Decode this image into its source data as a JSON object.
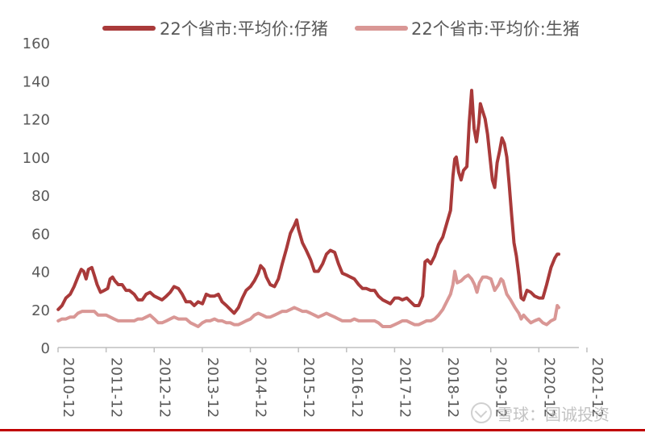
{
  "chart_data": {
    "type": "line",
    "title": "",
    "xlabel": "",
    "ylabel": "",
    "ylim": [
      0,
      160
    ],
    "yticks": [
      0,
      20,
      40,
      60,
      80,
      100,
      120,
      140,
      160
    ],
    "xlim": [
      2010.917,
      2021.75
    ],
    "x_tick_labels": [
      "2010-12",
      "2011-12",
      "2012-12",
      "2013-12",
      "2014-12",
      "2015-12",
      "2016-12",
      "2017-12",
      "2018-12",
      "2019-12",
      "2020-12",
      "2021-12"
    ],
    "x_tick_years": [
      2010.917,
      2011.917,
      2012.917,
      2013.917,
      2014.917,
      2015.917,
      2016.917,
      2017.917,
      2018.917,
      2019.917,
      2020.917,
      2021.917
    ],
    "grid": false,
    "legend_position": "top",
    "series": [
      {
        "name": "22个省市:平均价:仔猪",
        "color": "#a93a3a",
        "points": [
          [
            2010.92,
            20
          ],
          [
            2011.0,
            22
          ],
          [
            2011.08,
            26
          ],
          [
            2011.17,
            28
          ],
          [
            2011.25,
            32
          ],
          [
            2011.33,
            37
          ],
          [
            2011.4,
            41
          ],
          [
            2011.45,
            40
          ],
          [
            2011.5,
            36
          ],
          [
            2011.55,
            41
          ],
          [
            2011.62,
            42
          ],
          [
            2011.67,
            38
          ],
          [
            2011.73,
            33
          ],
          [
            2011.8,
            29
          ],
          [
            2011.88,
            30
          ],
          [
            2011.95,
            31
          ],
          [
            2012.0,
            36
          ],
          [
            2012.05,
            37
          ],
          [
            2012.1,
            35
          ],
          [
            2012.17,
            33
          ],
          [
            2012.25,
            33
          ],
          [
            2012.33,
            30
          ],
          [
            2012.4,
            30
          ],
          [
            2012.5,
            28
          ],
          [
            2012.58,
            25
          ],
          [
            2012.67,
            25
          ],
          [
            2012.75,
            28
          ],
          [
            2012.83,
            29
          ],
          [
            2012.92,
            27
          ],
          [
            2013.0,
            26
          ],
          [
            2013.08,
            25
          ],
          [
            2013.17,
            27
          ],
          [
            2013.25,
            29
          ],
          [
            2013.33,
            32
          ],
          [
            2013.42,
            31
          ],
          [
            2013.5,
            28
          ],
          [
            2013.58,
            24
          ],
          [
            2013.67,
            24
          ],
          [
            2013.75,
            22
          ],
          [
            2013.83,
            24
          ],
          [
            2013.92,
            23
          ],
          [
            2014.0,
            28
          ],
          [
            2014.08,
            27
          ],
          [
            2014.17,
            27
          ],
          [
            2014.25,
            28
          ],
          [
            2014.33,
            24
          ],
          [
            2014.42,
            22
          ],
          [
            2014.5,
            20
          ],
          [
            2014.58,
            18
          ],
          [
            2014.67,
            21
          ],
          [
            2014.75,
            26
          ],
          [
            2014.83,
            30
          ],
          [
            2014.92,
            32
          ],
          [
            2015.0,
            35
          ],
          [
            2015.08,
            39
          ],
          [
            2015.13,
            43
          ],
          [
            2015.2,
            41
          ],
          [
            2015.25,
            37
          ],
          [
            2015.33,
            33
          ],
          [
            2015.42,
            32
          ],
          [
            2015.5,
            36
          ],
          [
            2015.58,
            44
          ],
          [
            2015.67,
            52
          ],
          [
            2015.75,
            60
          ],
          [
            2015.83,
            64
          ],
          [
            2015.88,
            67
          ],
          [
            2015.92,
            62
          ],
          [
            2016.0,
            55
          ],
          [
            2016.08,
            51
          ],
          [
            2016.17,
            46
          ],
          [
            2016.25,
            40
          ],
          [
            2016.33,
            40
          ],
          [
            2016.42,
            44
          ],
          [
            2016.5,
            49
          ],
          [
            2016.58,
            51
          ],
          [
            2016.67,
            50
          ],
          [
            2016.75,
            44
          ],
          [
            2016.83,
            39
          ],
          [
            2016.92,
            38
          ],
          [
            2017.0,
            37
          ],
          [
            2017.08,
            36
          ],
          [
            2017.17,
            33
          ],
          [
            2017.25,
            31
          ],
          [
            2017.33,
            31
          ],
          [
            2017.42,
            30
          ],
          [
            2017.5,
            30
          ],
          [
            2017.58,
            27
          ],
          [
            2017.67,
            25
          ],
          [
            2017.75,
            24
          ],
          [
            2017.83,
            23
          ],
          [
            2017.92,
            26
          ],
          [
            2018.0,
            26
          ],
          [
            2018.08,
            25
          ],
          [
            2018.17,
            26
          ],
          [
            2018.25,
            24
          ],
          [
            2018.33,
            22
          ],
          [
            2018.42,
            22
          ],
          [
            2018.5,
            27
          ],
          [
            2018.55,
            45
          ],
          [
            2018.6,
            46
          ],
          [
            2018.67,
            44
          ],
          [
            2018.75,
            48
          ],
          [
            2018.83,
            54
          ],
          [
            2018.92,
            58
          ],
          [
            2019.0,
            65
          ],
          [
            2019.08,
            72
          ],
          [
            2019.13,
            90
          ],
          [
            2019.17,
            99
          ],
          [
            2019.2,
            100
          ],
          [
            2019.25,
            92
          ],
          [
            2019.3,
            88
          ],
          [
            2019.35,
            93
          ],
          [
            2019.42,
            95
          ],
          [
            2019.47,
            118
          ],
          [
            2019.52,
            135
          ],
          [
            2019.57,
            115
          ],
          [
            2019.62,
            108
          ],
          [
            2019.67,
            118
          ],
          [
            2019.7,
            128
          ],
          [
            2019.75,
            124
          ],
          [
            2019.8,
            120
          ],
          [
            2019.85,
            112
          ],
          [
            2019.9,
            100
          ],
          [
            2019.95,
            88
          ],
          [
            2020.0,
            84
          ],
          [
            2020.05,
            97
          ],
          [
            2020.1,
            103
          ],
          [
            2020.15,
            110
          ],
          [
            2020.2,
            107
          ],
          [
            2020.25,
            100
          ],
          [
            2020.3,
            86
          ],
          [
            2020.35,
            70
          ],
          [
            2020.4,
            55
          ],
          [
            2020.45,
            48
          ],
          [
            2020.5,
            38
          ],
          [
            2020.55,
            26
          ],
          [
            2020.6,
            25
          ],
          [
            2020.67,
            30
          ],
          [
            2020.75,
            29
          ],
          [
            2020.83,
            27
          ],
          [
            2020.92,
            26
          ],
          [
            2021.0,
            26
          ],
          [
            2021.08,
            33
          ],
          [
            2021.17,
            42
          ],
          [
            2021.25,
            47
          ],
          [
            2021.3,
            49
          ],
          [
            2021.33,
            49
          ]
        ]
      },
      {
        "name": "22个省市:平均价:生猪",
        "color": "#d99795",
        "points": [
          [
            2010.92,
            14
          ],
          [
            2011.0,
            15
          ],
          [
            2011.08,
            15
          ],
          [
            2011.17,
            16
          ],
          [
            2011.25,
            16
          ],
          [
            2011.33,
            18
          ],
          [
            2011.42,
            19
          ],
          [
            2011.5,
            19
          ],
          [
            2011.58,
            19
          ],
          [
            2011.67,
            19
          ],
          [
            2011.75,
            17
          ],
          [
            2011.83,
            17
          ],
          [
            2011.92,
            17
          ],
          [
            2012.0,
            16
          ],
          [
            2012.08,
            15
          ],
          [
            2012.17,
            14
          ],
          [
            2012.25,
            14
          ],
          [
            2012.33,
            14
          ],
          [
            2012.42,
            14
          ],
          [
            2012.5,
            14
          ],
          [
            2012.58,
            15
          ],
          [
            2012.67,
            15
          ],
          [
            2012.75,
            16
          ],
          [
            2012.83,
            17
          ],
          [
            2012.92,
            15
          ],
          [
            2013.0,
            13
          ],
          [
            2013.08,
            13
          ],
          [
            2013.17,
            14
          ],
          [
            2013.25,
            15
          ],
          [
            2013.33,
            16
          ],
          [
            2013.42,
            15
          ],
          [
            2013.5,
            15
          ],
          [
            2013.58,
            15
          ],
          [
            2013.67,
            13
          ],
          [
            2013.75,
            12
          ],
          [
            2013.83,
            11
          ],
          [
            2013.92,
            13
          ],
          [
            2014.0,
            14
          ],
          [
            2014.08,
            14
          ],
          [
            2014.17,
            15
          ],
          [
            2014.25,
            14
          ],
          [
            2014.33,
            14
          ],
          [
            2014.42,
            13
          ],
          [
            2014.5,
            13
          ],
          [
            2014.58,
            12
          ],
          [
            2014.67,
            12
          ],
          [
            2014.75,
            13
          ],
          [
            2014.83,
            14
          ],
          [
            2014.92,
            15
          ],
          [
            2015.0,
            17
          ],
          [
            2015.08,
            18
          ],
          [
            2015.17,
            17
          ],
          [
            2015.25,
            16
          ],
          [
            2015.33,
            16
          ],
          [
            2015.42,
            17
          ],
          [
            2015.5,
            18
          ],
          [
            2015.58,
            19
          ],
          [
            2015.67,
            19
          ],
          [
            2015.75,
            20
          ],
          [
            2015.83,
            21
          ],
          [
            2015.92,
            20
          ],
          [
            2016.0,
            19
          ],
          [
            2016.08,
            19
          ],
          [
            2016.17,
            18
          ],
          [
            2016.25,
            17
          ],
          [
            2016.33,
            16
          ],
          [
            2016.42,
            17
          ],
          [
            2016.5,
            18
          ],
          [
            2016.58,
            17
          ],
          [
            2016.67,
            16
          ],
          [
            2016.75,
            15
          ],
          [
            2016.83,
            14
          ],
          [
            2016.92,
            14
          ],
          [
            2017.0,
            14
          ],
          [
            2017.08,
            15
          ],
          [
            2017.17,
            14
          ],
          [
            2017.25,
            14
          ],
          [
            2017.33,
            14
          ],
          [
            2017.42,
            14
          ],
          [
            2017.5,
            14
          ],
          [
            2017.58,
            13
          ],
          [
            2017.67,
            11
          ],
          [
            2017.75,
            11
          ],
          [
            2017.83,
            11
          ],
          [
            2017.92,
            12
          ],
          [
            2018.0,
            13
          ],
          [
            2018.08,
            14
          ],
          [
            2018.17,
            14
          ],
          [
            2018.25,
            13
          ],
          [
            2018.33,
            12
          ],
          [
            2018.42,
            12
          ],
          [
            2018.5,
            13
          ],
          [
            2018.58,
            14
          ],
          [
            2018.67,
            14
          ],
          [
            2018.75,
            15
          ],
          [
            2018.83,
            17
          ],
          [
            2018.92,
            20
          ],
          [
            2019.0,
            24
          ],
          [
            2019.08,
            28
          ],
          [
            2019.13,
            33
          ],
          [
            2019.17,
            40
          ],
          [
            2019.22,
            34
          ],
          [
            2019.3,
            35
          ],
          [
            2019.38,
            37
          ],
          [
            2019.45,
            38
          ],
          [
            2019.52,
            36
          ],
          [
            2019.58,
            33
          ],
          [
            2019.63,
            29
          ],
          [
            2019.68,
            34
          ],
          [
            2019.75,
            37
          ],
          [
            2019.83,
            37
          ],
          [
            2019.92,
            36
          ],
          [
            2020.0,
            30
          ],
          [
            2020.08,
            33
          ],
          [
            2020.13,
            36
          ],
          [
            2020.17,
            35
          ],
          [
            2020.25,
            28
          ],
          [
            2020.33,
            25
          ],
          [
            2020.42,
            21
          ],
          [
            2020.5,
            18
          ],
          [
            2020.55,
            15
          ],
          [
            2020.6,
            17
          ],
          [
            2020.67,
            15
          ],
          [
            2020.75,
            13
          ],
          [
            2020.83,
            14
          ],
          [
            2020.92,
            15
          ],
          [
            2021.0,
            13
          ],
          [
            2021.08,
            12
          ],
          [
            2021.17,
            14
          ],
          [
            2021.25,
            15
          ],
          [
            2021.3,
            22
          ],
          [
            2021.33,
            21
          ]
        ]
      }
    ]
  },
  "watermark": {
    "text": "雪球：国诚投资"
  }
}
